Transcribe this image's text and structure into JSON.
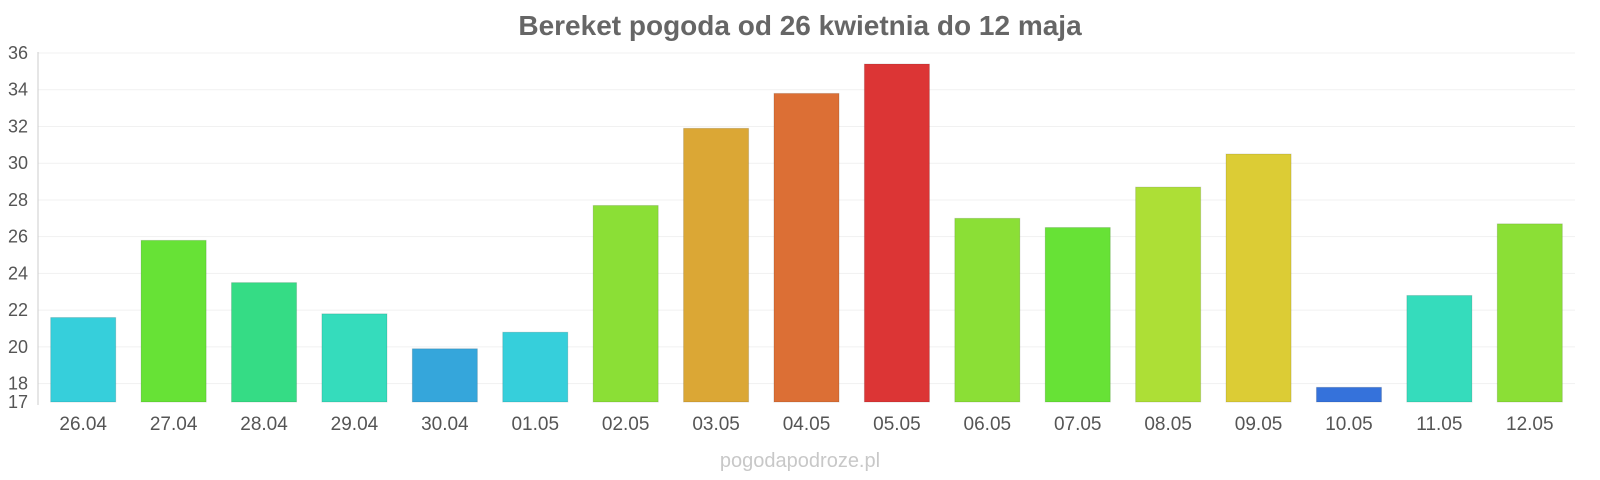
{
  "chart_data": {
    "type": "bar",
    "title": "Bereket pogoda od 26 kwietnia do 12 maja",
    "xlabel": "",
    "ylabel": "",
    "ylim": [
      17,
      36
    ],
    "yticks": [
      17,
      18,
      20,
      22,
      24,
      26,
      28,
      30,
      32,
      34,
      36
    ],
    "grid": true,
    "categories": [
      "26.04",
      "27.04",
      "28.04",
      "29.04",
      "30.04",
      "01.05",
      "02.05",
      "03.05",
      "04.05",
      "05.05",
      "06.05",
      "07.05",
      "08.05",
      "09.05",
      "10.05",
      "11.05",
      "12.05"
    ],
    "values": [
      21.6,
      25.8,
      23.5,
      21.8,
      19.9,
      20.8,
      27.7,
      31.9,
      33.8,
      35.4,
      27.0,
      26.5,
      28.7,
      30.5,
      17.8,
      22.8,
      26.7
    ],
    "colors": [
      "#36cfdb",
      "#67e236",
      "#35dc85",
      "#35dcbc",
      "#35a6db",
      "#36cfdb",
      "#8bdf36",
      "#dba735",
      "#dc6f35",
      "#dc3535",
      "#8bdf36",
      "#67e236",
      "#addf36",
      "#dccc35",
      "#3572db",
      "#35dcbc",
      "#8bdf36"
    ]
  },
  "footer": "pogodapodroze.pl"
}
